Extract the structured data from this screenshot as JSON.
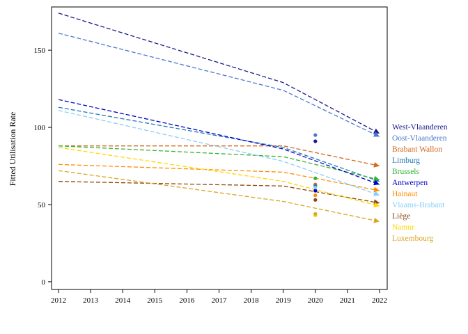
{
  "chart_data": {
    "type": "line",
    "ylabel": "Fitted Utilisation Rate",
    "xlabel": "",
    "xlim": [
      2012,
      2022
    ],
    "ylim": [
      -5,
      178
    ],
    "x_ticks": [
      2012,
      2013,
      2014,
      2015,
      2016,
      2017,
      2018,
      2019,
      2020,
      2021,
      2022
    ],
    "y_ticks": [
      0,
      50,
      100,
      150
    ],
    "grid": false,
    "legend_position": "right",
    "series": [
      {
        "name": "West-Vlaanderen",
        "color": "#1a1a8c",
        "x": [
          2012,
          2019,
          2022
        ],
        "y": [
          174,
          129,
          96
        ],
        "point_2020": 91
      },
      {
        "name": "Oost-Vlaanderen",
        "color": "#4a78d0",
        "x": [
          2012,
          2019,
          2022
        ],
        "y": [
          161,
          124,
          94
        ],
        "point_2020": 95
      },
      {
        "name": "Brabant Wallon",
        "color": "#d2691e",
        "x": [
          2012,
          2019,
          2022
        ],
        "y": [
          88,
          88,
          75
        ],
        "point_2020": 63
      },
      {
        "name": "Limburg",
        "color": "#1f77b4",
        "x": [
          2012,
          2019,
          2022
        ],
        "y": [
          113,
          87,
          65
        ],
        "point_2020": 62
      },
      {
        "name": "Brussels",
        "color": "#32b432",
        "x": [
          2012,
          2019,
          2022
        ],
        "y": [
          88,
          81,
          66
        ],
        "point_2020": 67
      },
      {
        "name": "Antwerpen",
        "color": "#0000cd",
        "x": [
          2012,
          2019,
          2022
        ],
        "y": [
          118,
          86,
          63
        ],
        "point_2020": 59
      },
      {
        "name": "Hainaut",
        "color": "#ff8c00",
        "x": [
          2012,
          2019,
          2022
        ],
        "y": [
          76,
          71,
          59
        ],
        "point_2020": 56
      },
      {
        "name": "Vlaams-Brabant",
        "color": "#87cefa",
        "x": [
          2012,
          2019,
          2022
        ],
        "y": [
          111,
          78,
          56
        ],
        "point_2020": 61
      },
      {
        "name": "Liège",
        "color": "#8b4513",
        "x": [
          2012,
          2019,
          2022
        ],
        "y": [
          65,
          62,
          51
        ],
        "point_2020": 53
      },
      {
        "name": "Namur",
        "color": "#ffd700",
        "x": [
          2012,
          2019,
          2022
        ],
        "y": [
          87,
          65,
          49
        ],
        "point_2020": 43
      },
      {
        "name": "Luxembourg",
        "color": "#daa520",
        "x": [
          2012,
          2019,
          2022
        ],
        "y": [
          72,
          52,
          39
        ],
        "point_2020": 44
      }
    ]
  }
}
